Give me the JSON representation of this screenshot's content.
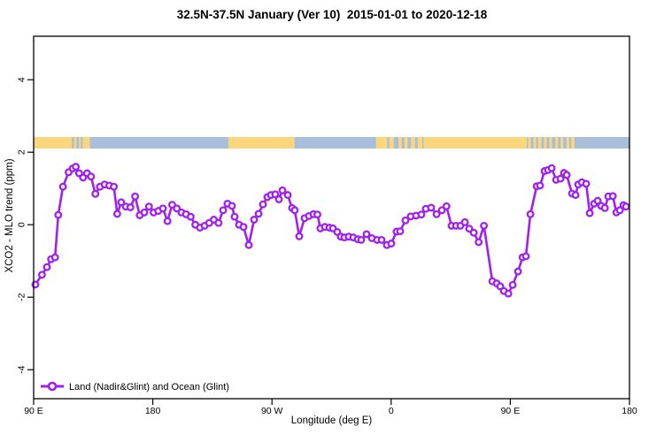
{
  "title": "32.5N-37.5N January (Ver 10)  2015-01-01 to 2020-12-18",
  "axes": {
    "x": {
      "label": "Longitude (deg E)",
      "ticks": [
        90,
        180,
        270,
        360,
        450,
        540
      ],
      "tick_labels": [
        "90 E",
        "180",
        "90 W",
        "0",
        "90 E",
        "180"
      ],
      "range": [
        90,
        540
      ]
    },
    "y": {
      "label": "XCO2 - MLO trend (ppm)",
      "ticks": [
        -4,
        -2,
        0,
        2,
        4
      ],
      "tick_labels": [
        "-4",
        "-2",
        "0",
        "2",
        "4"
      ],
      "range": [
        -4.8,
        5.2
      ]
    }
  },
  "legend": {
    "label": "Land (Nadir&Glint) and Ocean (Glint)",
    "marker": "open-circle-marker",
    "position": "bottom-left"
  },
  "colors": {
    "series": "#A020F0",
    "land": "#FAD67D",
    "ocean": "#A8BEDB",
    "axis": "#000000",
    "background": "#FFFFFF"
  },
  "map_band": {
    "description": "land-ocean strip for latitude band",
    "value_range": [
      2.1,
      2.42
    ],
    "base": "ocean",
    "land_segments": [
      [
        90,
        119
      ],
      [
        120.5,
        122.3
      ],
      [
        124.3,
        125.6
      ],
      [
        127,
        132.5
      ],
      [
        237,
        287
      ],
      [
        348.5,
        357
      ],
      [
        358.5,
        362
      ],
      [
        365.5,
        368
      ],
      [
        370,
        372.5
      ],
      [
        375,
        378
      ],
      [
        380,
        383.5
      ],
      [
        384.5,
        462.5
      ],
      [
        463.5,
        465.5
      ],
      [
        467.5,
        469.5
      ],
      [
        471,
        473.5
      ],
      [
        475.5,
        477.5
      ],
      [
        479.5,
        481.5
      ],
      [
        484,
        486
      ],
      [
        488,
        490
      ],
      [
        492.5,
        494.5
      ],
      [
        496,
        498.5
      ]
    ]
  },
  "chart_data": {
    "type": "line",
    "title": "32.5N-37.5N January (Ver 10)  2015-01-01 to 2020-12-18",
    "xlabel": "Longitude (deg E)",
    "ylabel": "XCO2 - MLO trend (ppm)",
    "xlim": [
      90,
      540
    ],
    "ylim": [
      -4.8,
      5.2
    ],
    "grid": false,
    "legend_position": "bottom-left",
    "marker": "open-circle",
    "series": [
      {
        "name": "Land (Nadir&Glint) and Ocean (Glint)",
        "color": "#A020F0",
        "points": [
          [
            91.3,
            -1.65
          ],
          [
            96.3,
            -1.38
          ],
          [
            100,
            -1.17
          ],
          [
            103.2,
            -0.95
          ],
          [
            106.2,
            -0.9
          ],
          [
            108.6,
            0.27
          ],
          [
            112.1,
            1.05
          ],
          [
            116.4,
            1.45
          ],
          [
            119.4,
            1.55
          ],
          [
            121.8,
            1.6
          ],
          [
            124.3,
            1.42
          ],
          [
            127.3,
            1.3
          ],
          [
            130.3,
            1.42
          ],
          [
            133.3,
            1.33
          ],
          [
            136.6,
            0.85
          ],
          [
            140.1,
            1.05
          ],
          [
            143.6,
            1.11
          ],
          [
            147.1,
            1.08
          ],
          [
            150.6,
            1.05
          ],
          [
            153.1,
            0.3
          ],
          [
            156.1,
            0.62
          ],
          [
            159.6,
            0.5
          ],
          [
            163.1,
            0.48
          ],
          [
            166.6,
            0.78
          ],
          [
            170.1,
            0.26
          ],
          [
            173.6,
            0.34
          ],
          [
            177.1,
            0.5
          ],
          [
            180.6,
            0.34
          ],
          [
            184.1,
            0.38
          ],
          [
            187.6,
            0.45
          ],
          [
            191.1,
            0.1
          ],
          [
            194.6,
            0.55
          ],
          [
            198.1,
            0.45
          ],
          [
            201.6,
            0.34
          ],
          [
            205.1,
            0.29
          ],
          [
            208.6,
            0.22
          ],
          [
            212.1,
            0.0
          ],
          [
            215.6,
            -0.08
          ],
          [
            219.1,
            -0.03
          ],
          [
            222.6,
            0.05
          ],
          [
            226.1,
            0.14
          ],
          [
            229.6,
            0.05
          ],
          [
            233.1,
            0.4
          ],
          [
            236.4,
            0.58
          ],
          [
            239.8,
            0.52
          ],
          [
            241.8,
            0.22
          ],
          [
            245.1,
            0.0
          ],
          [
            248.5,
            -0.06
          ],
          [
            252.5,
            -0.56
          ],
          [
            256.5,
            0.14
          ],
          [
            259.9,
            0.3
          ],
          [
            263.2,
            0.56
          ],
          [
            266.5,
            0.76
          ],
          [
            269.2,
            0.82
          ],
          [
            272.5,
            0.84
          ],
          [
            275.2,
            0.7
          ],
          [
            277.9,
            0.95
          ],
          [
            281.9,
            0.82
          ],
          [
            285.2,
            0.46
          ],
          [
            287.2,
            0.4
          ],
          [
            290.6,
            -0.32
          ],
          [
            294.6,
            0.18
          ],
          [
            297.9,
            0.24
          ],
          [
            301.3,
            0.29
          ],
          [
            304.3,
            0.28
          ],
          [
            306.6,
            -0.1
          ],
          [
            310,
            -0.06
          ],
          [
            313.3,
            -0.08
          ],
          [
            316,
            -0.1
          ],
          [
            319.3,
            -0.2
          ],
          [
            322,
            -0.33
          ],
          [
            324.7,
            -0.35
          ],
          [
            328,
            -0.33
          ],
          [
            331.4,
            -0.35
          ],
          [
            334.7,
            -0.4
          ],
          [
            337.4,
            -0.42
          ],
          [
            341.4,
            -0.26
          ],
          [
            345.4,
            -0.37
          ],
          [
            349.4,
            -0.42
          ],
          [
            352.8,
            -0.42
          ],
          [
            356.8,
            -0.56
          ],
          [
            360.1,
            -0.52
          ],
          [
            364.1,
            -0.19
          ],
          [
            366.8,
            -0.18
          ],
          [
            370.8,
            0.12
          ],
          [
            374.8,
            0.23
          ],
          [
            378.8,
            0.25
          ],
          [
            382.8,
            0.28
          ],
          [
            386.2,
            0.44
          ],
          [
            390.2,
            0.47
          ],
          [
            394.3,
            0.29
          ],
          [
            398.3,
            0.4
          ],
          [
            401.8,
            0.51
          ],
          [
            405.6,
            -0.03
          ],
          [
            409,
            -0.03
          ],
          [
            412.3,
            -0.03
          ],
          [
            415.7,
            0.07
          ],
          [
            419,
            -0.11
          ],
          [
            422.4,
            -0.22
          ],
          [
            426.1,
            -0.48
          ],
          [
            430.1,
            -0.03
          ],
          [
            436.4,
            -1.56
          ],
          [
            439.8,
            -1.62
          ],
          [
            442.4,
            -1.7
          ],
          [
            445.1,
            -1.83
          ],
          [
            448.5,
            -1.9
          ],
          [
            451.8,
            -1.66
          ],
          [
            455.8,
            -1.29
          ],
          [
            459.2,
            -0.9
          ],
          [
            461.8,
            -0.87
          ],
          [
            465.2,
            0.29
          ],
          [
            469.9,
            1.06
          ],
          [
            472.5,
            1.08
          ],
          [
            475.9,
            1.48
          ],
          [
            478.5,
            1.51
          ],
          [
            481.2,
            1.56
          ],
          [
            484.6,
            1.24
          ],
          [
            487.9,
            1.27
          ],
          [
            490.6,
            1.43
          ],
          [
            492.6,
            1.37
          ],
          [
            496.6,
            0.86
          ],
          [
            499.3,
            0.82
          ],
          [
            501.3,
            1.11
          ],
          [
            504,
            1.17
          ],
          [
            507.3,
            1.13
          ],
          [
            510,
            0.32
          ],
          [
            513.3,
            0.58
          ],
          [
            516,
            0.66
          ],
          [
            518.7,
            0.52
          ],
          [
            521.4,
            0.46
          ],
          [
            524,
            0.78
          ],
          [
            527.4,
            0.79
          ],
          [
            530.1,
            0.34
          ],
          [
            532.7,
            0.4
          ],
          [
            535.4,
            0.54
          ],
          [
            537.4,
            0.5
          ]
        ]
      }
    ]
  }
}
